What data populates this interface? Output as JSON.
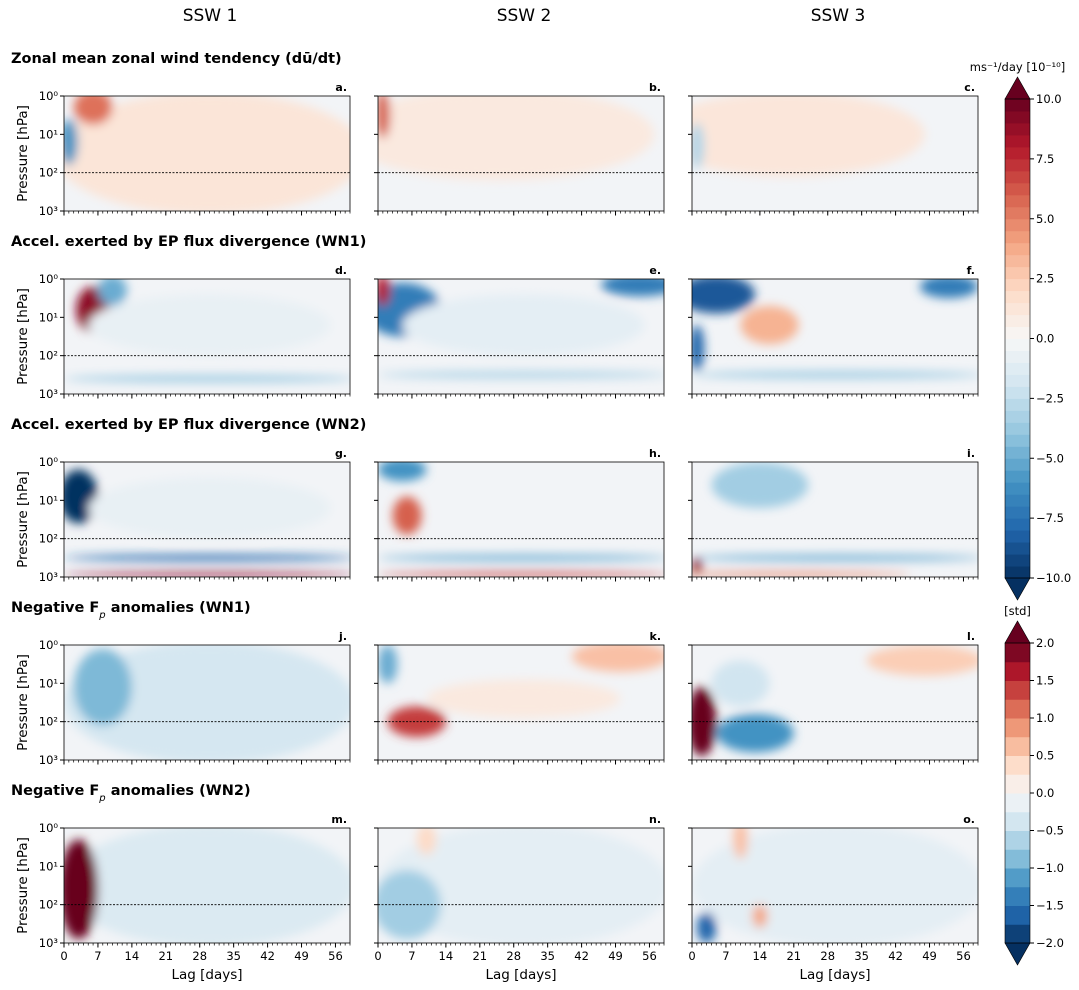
{
  "figure": {
    "column_titles": [
      "SSW 1",
      "SSW 2",
      "SSW 3"
    ],
    "rows": [
      {
        "title": [
          {
            "text": "Zonal mean zonal wind tendency "
          },
          {
            "text": "(dū/dt)"
          }
        ],
        "panels": [
          "a.",
          "b.",
          "c."
        ],
        "colorbar": 0
      },
      {
        "title": [
          {
            "text": "Accel. exerted by EP flux divergence (WN1)"
          }
        ],
        "panels": [
          "d.",
          "e.",
          "f."
        ],
        "colorbar": 0
      },
      {
        "title": [
          {
            "text": "Accel. exerted by EP flux divergence (WN2)"
          }
        ],
        "panels": [
          "g.",
          "h.",
          "i."
        ],
        "colorbar": 0
      },
      {
        "title": [
          {
            "text": "Negative F"
          },
          {
            "text": "p",
            "sub": true
          },
          {
            "text": " anomalies (WN1)"
          }
        ],
        "panels": [
          "j.",
          "k.",
          "l."
        ],
        "colorbar": 1
      },
      {
        "title": [
          {
            "text": "Negative F"
          },
          {
            "text": "p",
            "sub": true
          },
          {
            "text": " anomalies (WN2)"
          }
        ],
        "panels": [
          "m.",
          "n.",
          "o."
        ],
        "colorbar": 1
      }
    ],
    "y_axis": {
      "label": "Pressure [hPa]",
      "log": true,
      "ylim": [
        1000,
        1
      ],
      "yticks": [
        {
          "value": 1,
          "label": "10⁰"
        },
        {
          "value": 10,
          "label": "10¹"
        },
        {
          "value": 100,
          "label": "10²"
        },
        {
          "value": 1000,
          "label": "10³"
        }
      ],
      "reference_line": 100
    },
    "x_axis": {
      "label": "Lag [days]",
      "xlim": [
        0,
        59
      ],
      "xticks": [
        0,
        7,
        14,
        21,
        28,
        35,
        42,
        49,
        56
      ],
      "minor_step": 1
    },
    "colormap": [
      "#053061",
      "#2166ac",
      "#4393c3",
      "#92c5de",
      "#d1e5f0",
      "#f7f7f7",
      "#fddbc7",
      "#f4a582",
      "#d6604d",
      "#b2182b",
      "#67001f"
    ],
    "colorbars": [
      {
        "label": "ms⁻¹/day [10⁻¹⁰]",
        "lim": [
          -10,
          10
        ],
        "levels": 40,
        "ticks": [
          {
            "value": 10,
            "label": "10.0"
          },
          {
            "value": 7.5,
            "label": "7.5"
          },
          {
            "value": 5,
            "label": "5.0"
          },
          {
            "value": 2.5,
            "label": "2.5"
          },
          {
            "value": 0,
            "label": "0.0"
          },
          {
            "value": -2.5,
            "label": "−2.5"
          },
          {
            "value": -5,
            "label": "−5.0"
          },
          {
            "value": -7.5,
            "label": "−7.5"
          },
          {
            "value": -10,
            "label": "−10.0"
          }
        ]
      },
      {
        "label": "[std]",
        "lim": [
          -2,
          2
        ],
        "levels": 16,
        "ticks": [
          {
            "value": 2,
            "label": "2.0"
          },
          {
            "value": 1.5,
            "label": "1.5"
          },
          {
            "value": 1,
            "label": "1.0"
          },
          {
            "value": 0.5,
            "label": "0.5"
          },
          {
            "value": 0,
            "label": "0.0"
          },
          {
            "value": -0.5,
            "label": "−0.5"
          },
          {
            "value": -1,
            "label": "−1.0"
          },
          {
            "value": -1.5,
            "label": "−1.5"
          },
          {
            "value": -2,
            "label": "−2.0"
          }
        ]
      }
    ]
  }
}
